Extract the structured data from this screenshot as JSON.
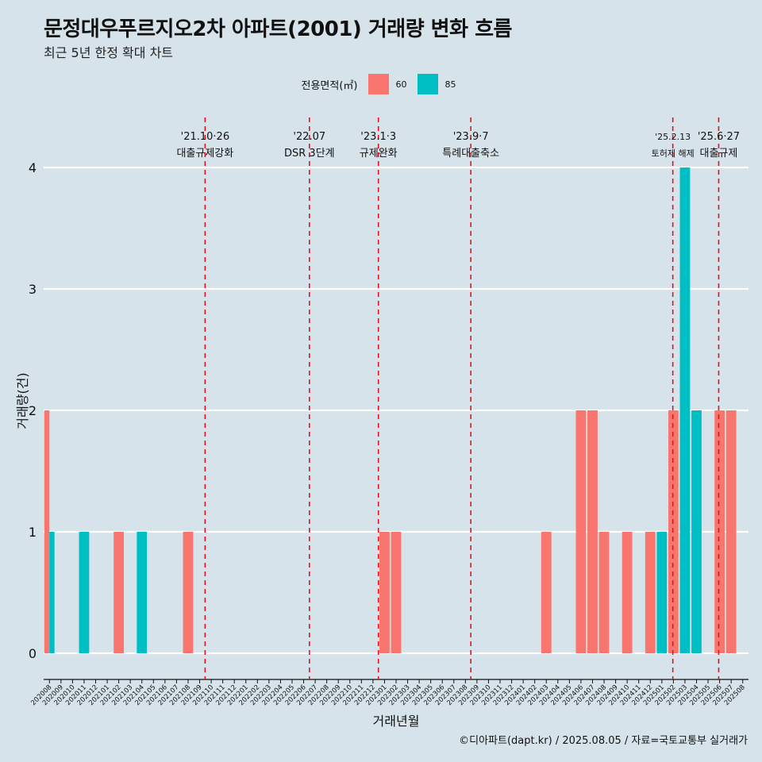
{
  "title": "문정대우푸르지오2차 아파트(2001) 거래량 변화 흐름",
  "subtitle": "최근 5년 한정 확대 차트",
  "caption": "©디아파트(dapt.kr) / 2025.08.05 / 자료=국토교통부 실거래가",
  "legend": {
    "title": "전용면적(㎡)",
    "items": [
      {
        "label": "60",
        "color": "#f8766d"
      },
      {
        "label": "85",
        "color": "#00bfc4"
      }
    ]
  },
  "chart_data": {
    "type": "bar",
    "xlabel": "거래년월",
    "ylabel": "거래량(건)",
    "ylim": [
      0,
      4
    ],
    "yticks": [
      0,
      1,
      2,
      3,
      4
    ],
    "grid": true,
    "legend_position": "top",
    "categories": [
      "202008",
      "202009",
      "202010",
      "202011",
      "202012",
      "202101",
      "202102",
      "202103",
      "202104",
      "202105",
      "202106",
      "202107",
      "202108",
      "202109",
      "202110",
      "202111",
      "202112",
      "202201",
      "202202",
      "202203",
      "202204",
      "202205",
      "202206",
      "202207",
      "202208",
      "202209",
      "202210",
      "202211",
      "202212",
      "202301",
      "202302",
      "202303",
      "202304",
      "202305",
      "202306",
      "202307",
      "202308",
      "202309",
      "202310",
      "202311",
      "202312",
      "202401",
      "202402",
      "202403",
      "202404",
      "202405",
      "202406",
      "202407",
      "202408",
      "202409",
      "202410",
      "202411",
      "202412",
      "202501",
      "202502",
      "202503",
      "202504",
      "202505",
      "202506",
      "202507",
      "202508"
    ],
    "series": [
      {
        "name": "60",
        "color": "#f8766d",
        "points": [
          {
            "x": "202008",
            "y": 2
          },
          {
            "x": "202102",
            "y": 1
          },
          {
            "x": "202108",
            "y": 1
          },
          {
            "x": "202301",
            "y": 1
          },
          {
            "x": "202302",
            "y": 1
          },
          {
            "x": "202403",
            "y": 1
          },
          {
            "x": "202406",
            "y": 2
          },
          {
            "x": "202407",
            "y": 2
          },
          {
            "x": "202408",
            "y": 1
          },
          {
            "x": "202410",
            "y": 1
          },
          {
            "x": "202412",
            "y": 1
          },
          {
            "x": "202502",
            "y": 2
          },
          {
            "x": "202506",
            "y": 2
          },
          {
            "x": "202507",
            "y": 2
          }
        ]
      },
      {
        "name": "85",
        "color": "#00bfc4",
        "points": [
          {
            "x": "202008",
            "y": 1
          },
          {
            "x": "202011",
            "y": 1
          },
          {
            "x": "202104",
            "y": 1
          },
          {
            "x": "202501",
            "y": 1
          },
          {
            "x": "202503",
            "y": 4
          },
          {
            "x": "202504",
            "y": 2
          }
        ]
      }
    ],
    "annotations": [
      {
        "x": "202110",
        "offset": -0.03,
        "date": "'21.10·26",
        "text": "대출규제강화"
      },
      {
        "x": "202207",
        "offset": 0.0,
        "date": "'22.07",
        "text": "DSR 3단계"
      },
      {
        "x": "202301",
        "offset": -0.03,
        "date": "'23.1·3",
        "text": "규제완화"
      },
      {
        "x": "202309",
        "offset": -0.03,
        "date": "'23.9·7",
        "text": "특례대출축소"
      },
      {
        "x": "202502",
        "offset": 0.45,
        "date": "'25.2.13",
        "text": "토허제 해제",
        "small": true
      },
      {
        "x": "202506",
        "offset": 0.42,
        "date": "'25.6·27",
        "text": "대출규제"
      }
    ]
  }
}
